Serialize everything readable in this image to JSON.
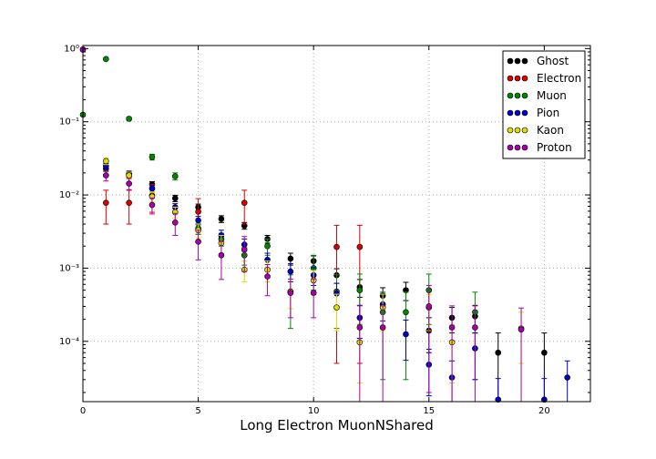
{
  "chart_data": {
    "type": "scatter",
    "title": "",
    "xlabel": "Long Electron MuonNShared",
    "ylabel": "",
    "xlim": [
      0,
      22
    ],
    "ylim": [
      1.5e-05,
      1.1
    ],
    "yscale": "log",
    "grid": true,
    "legend_position": "top-right",
    "xticks": [
      0,
      5,
      10,
      15,
      20
    ],
    "xtick_labels": [
      "0",
      "5",
      "10",
      "15",
      "20"
    ],
    "yticks": [
      0.0001,
      0.001,
      0.01,
      0.1,
      1
    ],
    "ytick_labels": [
      "10⁻⁴",
      "10⁻³",
      "10⁻²",
      "10⁻¹",
      "10⁰"
    ],
    "series": [
      {
        "name": "Ghost",
        "color": "#000000",
        "points": [
          {
            "x": 1,
            "y": 0.023,
            "err": 0.002
          },
          {
            "x": 2,
            "y": 0.019,
            "err": 0.0015
          },
          {
            "x": 3,
            "y": 0.014,
            "err": 0.0012
          },
          {
            "x": 4,
            "y": 0.009,
            "err": 0.0009
          },
          {
            "x": 5,
            "y": 0.0068,
            "err": 0.0007
          },
          {
            "x": 6,
            "y": 0.0047,
            "err": 0.0005
          },
          {
            "x": 7,
            "y": 0.0038,
            "err": 0.0004
          },
          {
            "x": 8,
            "y": 0.0025,
            "err": 0.0003
          },
          {
            "x": 9,
            "y": 0.00135,
            "err": 0.00025
          },
          {
            "x": 10,
            "y": 0.00125,
            "err": 0.00022
          },
          {
            "x": 11,
            "y": 0.0008,
            "err": 0.00018
          },
          {
            "x": 12,
            "y": 0.00055,
            "err": 0.00015
          },
          {
            "x": 13,
            "y": 0.00042,
            "err": 0.00012
          },
          {
            "x": 14,
            "y": 0.0005,
            "err": 0.00014
          },
          {
            "x": 15,
            "y": 0.00014,
            "err": 7e-05
          },
          {
            "x": 16,
            "y": 0.00021,
            "err": 8e-05
          },
          {
            "x": 17,
            "y": 0.00022,
            "err": 9e-05
          },
          {
            "x": 18,
            "y": 7e-05,
            "err": 6e-05
          },
          {
            "x": 20,
            "y": 7e-05,
            "err": 6e-05
          }
        ]
      },
      {
        "name": "Electron",
        "color": "#dd0000",
        "points": [
          {
            "x": 0,
            "y": 0.97,
            "err": 0.02
          },
          {
            "x": 1,
            "y": 0.0078,
            "err": 0.0038
          },
          {
            "x": 2,
            "y": 0.0078,
            "err": 0.0038
          },
          {
            "x": 3,
            "y": 0.0098,
            "err": 0.004
          },
          {
            "x": 5,
            "y": 0.0059,
            "err": 0.003
          },
          {
            "x": 7,
            "y": 0.0078,
            "err": 0.0038
          },
          {
            "x": 11,
            "y": 0.00195,
            "err": 0.0019
          },
          {
            "x": 12,
            "y": 0.00195,
            "err": 0.0019
          }
        ]
      },
      {
        "name": "Muon",
        "color": "#008800",
        "points": [
          {
            "x": 0,
            "y": 0.125,
            "err": 0.005
          },
          {
            "x": 1,
            "y": 0.72,
            "err": 0.02
          },
          {
            "x": 2,
            "y": 0.11,
            "err": 0.005
          },
          {
            "x": 3,
            "y": 0.033,
            "err": 0.003
          },
          {
            "x": 4,
            "y": 0.018,
            "err": 0.002
          },
          {
            "x": 5,
            "y": 0.0035,
            "err": 0.0006
          },
          {
            "x": 6,
            "y": 0.0025,
            "err": 0.0005
          },
          {
            "x": 7,
            "y": 0.0015,
            "err": 0.0004
          },
          {
            "x": 8,
            "y": 0.002,
            "err": 0.0005
          },
          {
            "x": 9,
            "y": 0.00048,
            "err": 0.00033
          },
          {
            "x": 10,
            "y": 0.001,
            "err": 0.0005
          },
          {
            "x": 11,
            "y": 0.00048,
            "err": 0.00033
          },
          {
            "x": 12,
            "y": 0.0005,
            "err": 0.00033
          },
          {
            "x": 13,
            "y": 0.00025,
            "err": 0.00022
          },
          {
            "x": 14,
            "y": 0.00025,
            "err": 0.00022
          },
          {
            "x": 15,
            "y": 0.0005,
            "err": 0.00033
          },
          {
            "x": 17,
            "y": 0.00025,
            "err": 0.00022
          }
        ]
      },
      {
        "name": "Pion",
        "color": "#0000cc",
        "points": [
          {
            "x": 1,
            "y": 0.025,
            "err": 0.002
          },
          {
            "x": 2,
            "y": 0.0195,
            "err": 0.0017
          },
          {
            "x": 3,
            "y": 0.0122,
            "err": 0.0012
          },
          {
            "x": 4,
            "y": 0.0068,
            "err": 0.0008
          },
          {
            "x": 5,
            "y": 0.0045,
            "err": 0.0006
          },
          {
            "x": 6,
            "y": 0.0028,
            "err": 0.0005
          },
          {
            "x": 7,
            "y": 0.0021,
            "err": 0.0004
          },
          {
            "x": 8,
            "y": 0.0013,
            "err": 0.0003
          },
          {
            "x": 9,
            "y": 0.0009,
            "err": 0.00025
          },
          {
            "x": 10,
            "y": 0.0008,
            "err": 0.00022
          },
          {
            "x": 11,
            "y": 0.00045,
            "err": 0.00017
          },
          {
            "x": 12,
            "y": 0.00021,
            "err": 0.0001
          },
          {
            "x": 13,
            "y": 0.00032,
            "err": 0.00013
          },
          {
            "x": 14,
            "y": 0.000125,
            "err": 7e-05
          },
          {
            "x": 15,
            "y": 4.8e-05,
            "err": 3e-05
          },
          {
            "x": 16,
            "y": 3.2e-05,
            "err": 2.2e-05
          },
          {
            "x": 17,
            "y": 8e-05,
            "err": 5e-05
          },
          {
            "x": 18,
            "y": 1.6e-05,
            "err": 1.5e-05
          },
          {
            "x": 20,
            "y": 1.6e-05,
            "err": 1.5e-05
          },
          {
            "x": 21,
            "y": 3.2e-05,
            "err": 2.2e-05
          }
        ]
      },
      {
        "name": "Kaon",
        "color": "#dddd00",
        "points": [
          {
            "x": 1,
            "y": 0.029,
            "err": 0.003
          },
          {
            "x": 2,
            "y": 0.0185,
            "err": 0.002
          },
          {
            "x": 3,
            "y": 0.0095,
            "err": 0.0015
          },
          {
            "x": 4,
            "y": 0.0058,
            "err": 0.001
          },
          {
            "x": 5,
            "y": 0.0033,
            "err": 0.0007
          },
          {
            "x": 6,
            "y": 0.0022,
            "err": 0.0006
          },
          {
            "x": 7,
            "y": 0.00095,
            "err": 0.0003
          },
          {
            "x": 8,
            "y": 0.00095,
            "err": 0.0003
          },
          {
            "x": 9,
            "y": 0.00048,
            "err": 0.0002
          },
          {
            "x": 10,
            "y": 0.00068,
            "err": 0.00025
          },
          {
            "x": 11,
            "y": 0.00029,
            "err": 0.00015
          },
          {
            "x": 12,
            "y": 9.7e-05,
            "err": 7e-05
          },
          {
            "x": 13,
            "y": 0.00029,
            "err": 0.00015
          },
          {
            "x": 15,
            "y": 0.00029,
            "err": 0.00015
          },
          {
            "x": 16,
            "y": 9.7e-05,
            "err": 7e-05
          },
          {
            "x": 19,
            "y": 0.00015,
            "err": 0.0001
          }
        ]
      },
      {
        "name": "Proton",
        "color": "#aa00aa",
        "points": [
          {
            "x": 0,
            "y": 0.97,
            "err": 0.02
          },
          {
            "x": 1,
            "y": 0.0185,
            "err": 0.003
          },
          {
            "x": 2,
            "y": 0.0143,
            "err": 0.0025
          },
          {
            "x": 3,
            "y": 0.0073,
            "err": 0.0018
          },
          {
            "x": 4,
            "y": 0.0042,
            "err": 0.0014
          },
          {
            "x": 5,
            "y": 0.0023,
            "err": 0.001
          },
          {
            "x": 6,
            "y": 0.0015,
            "err": 0.0008
          },
          {
            "x": 7,
            "y": 0.0018,
            "err": 0.0009
          },
          {
            "x": 8,
            "y": 0.00077,
            "err": 0.00035
          },
          {
            "x": 9,
            "y": 0.00046,
            "err": 0.00025
          },
          {
            "x": 10,
            "y": 0.00046,
            "err": 0.00025
          },
          {
            "x": 12,
            "y": 0.000155,
            "err": 0.00015
          },
          {
            "x": 13,
            "y": 0.000155,
            "err": 0.00015
          },
          {
            "x": 15,
            "y": 0.0003,
            "err": 0.00028
          },
          {
            "x": 16,
            "y": 0.000155,
            "err": 0.00015
          },
          {
            "x": 17,
            "y": 0.000155,
            "err": 0.00015
          },
          {
            "x": 19,
            "y": 0.000145,
            "err": 0.00014
          }
        ]
      }
    ]
  }
}
